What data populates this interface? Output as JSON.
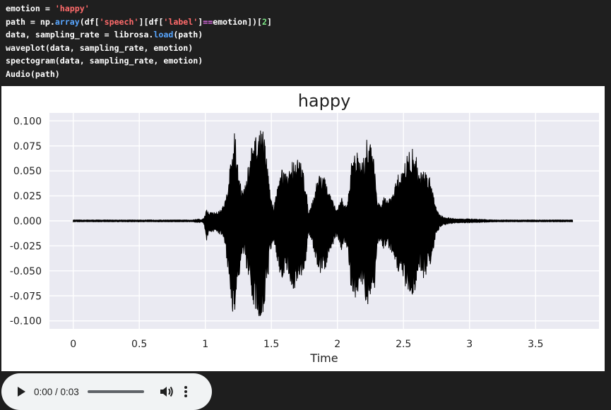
{
  "code": {
    "lines": [
      [
        {
          "t": "emotion = ",
          "c": ""
        },
        {
          "t": "'happy'",
          "c": "str"
        }
      ],
      [
        {
          "t": "path = np.",
          "c": ""
        },
        {
          "t": "array",
          "c": "fn"
        },
        {
          "t": "(df[",
          "c": ""
        },
        {
          "t": "'speech'",
          "c": "str"
        },
        {
          "t": "][df[",
          "c": ""
        },
        {
          "t": "'label'",
          "c": "str"
        },
        {
          "t": "]",
          "c": ""
        },
        {
          "t": "==",
          "c": "op"
        },
        {
          "t": "emotion])[",
          "c": ""
        },
        {
          "t": "2",
          "c": "num"
        },
        {
          "t": "]",
          "c": ""
        }
      ],
      [
        {
          "t": "data, sampling_rate = librosa.",
          "c": ""
        },
        {
          "t": "load",
          "c": "fn"
        },
        {
          "t": "(path)",
          "c": ""
        }
      ],
      [
        {
          "t": "waveplot(data, sampling_rate, emotion)",
          "c": ""
        }
      ],
      [
        {
          "t": "spectogram(data, sampling_rate, emotion)",
          "c": ""
        }
      ],
      [
        {
          "t": "Audio(path)",
          "c": ""
        }
      ]
    ]
  },
  "chart_data": {
    "type": "line",
    "title": "happy",
    "xlabel": "Time",
    "ylabel": "",
    "xlim": [
      -0.18,
      3.98
    ],
    "ylim": [
      -0.108,
      0.108
    ],
    "x_ticks": [
      "0",
      "0.5",
      "1",
      "1.5",
      "2",
      "2.5",
      "3",
      "3.5"
    ],
    "x_tick_values": [
      0,
      0.5,
      1,
      1.5,
      2,
      2.5,
      3,
      3.5
    ],
    "y_ticks": [
      "0.100",
      "0.075",
      "0.050",
      "0.025",
      "0.000",
      "-0.025",
      "-0.050",
      "-0.075",
      "-0.100"
    ],
    "y_tick_values": [
      0.1,
      0.075,
      0.05,
      0.025,
      0,
      -0.025,
      -0.05,
      -0.075,
      -0.1
    ],
    "grid": true,
    "background": "#eaeaf2",
    "line_color": "#000000",
    "signal_duration": 3.78,
    "envelope": {
      "t": [
        0,
        0.9,
        0.95,
        0.97,
        0.99,
        1.01,
        1.03,
        1.05,
        1.08,
        1.12,
        1.15,
        1.18,
        1.2,
        1.22,
        1.25,
        1.28,
        1.3,
        1.33,
        1.35,
        1.37,
        1.4,
        1.43,
        1.46,
        1.48,
        1.5,
        1.52,
        1.55,
        1.58,
        1.62,
        1.65,
        1.68,
        1.72,
        1.75,
        1.78,
        1.8,
        1.82,
        1.85,
        1.87,
        1.9,
        1.92,
        1.95,
        1.98,
        2.0,
        2.03,
        2.05,
        2.08,
        2.1,
        2.13,
        2.15,
        2.18,
        2.2,
        2.23,
        2.25,
        2.28,
        2.3,
        2.33,
        2.35,
        2.38,
        2.4,
        2.43,
        2.45,
        2.48,
        2.5,
        2.52,
        2.55,
        2.58,
        2.6,
        2.62,
        2.65,
        2.68,
        2.7,
        2.72,
        2.75,
        2.78,
        2.8,
        2.85,
        2.9,
        3.0,
        3.2,
        3.5,
        3.78
      ],
      "top": [
        0.001,
        0.001,
        0.002,
        0.001,
        0.003,
        0.012,
        0.008,
        0.01,
        0.008,
        0.012,
        0.02,
        0.05,
        0.07,
        0.093,
        0.055,
        0.03,
        0.035,
        0.06,
        0.075,
        0.08,
        0.09,
        0.098,
        0.07,
        0.045,
        0.02,
        0.015,
        0.04,
        0.055,
        0.045,
        0.06,
        0.065,
        0.06,
        0.05,
        0.01,
        0.015,
        0.025,
        0.045,
        0.05,
        0.045,
        0.035,
        0.025,
        0.015,
        0.012,
        0.025,
        0.015,
        0.02,
        0.055,
        0.075,
        0.07,
        0.055,
        0.065,
        0.09,
        0.078,
        0.07,
        0.02,
        0.015,
        0.025,
        0.02,
        0.025,
        0.03,
        0.045,
        0.05,
        0.055,
        0.065,
        0.072,
        0.073,
        0.065,
        0.045,
        0.055,
        0.05,
        0.045,
        0.035,
        0.012,
        0.006,
        0.004,
        0.003,
        0.002,
        0.002,
        0.001,
        0.001,
        0.001
      ],
      "bottom": [
        -0.001,
        -0.001,
        -0.002,
        -0.001,
        -0.003,
        -0.02,
        -0.01,
        -0.012,
        -0.01,
        -0.015,
        -0.025,
        -0.06,
        -0.09,
        -0.094,
        -0.06,
        -0.035,
        -0.04,
        -0.065,
        -0.078,
        -0.085,
        -0.095,
        -0.098,
        -0.075,
        -0.05,
        -0.025,
        -0.02,
        -0.045,
        -0.06,
        -0.05,
        -0.065,
        -0.07,
        -0.06,
        -0.055,
        -0.012,
        -0.02,
        -0.03,
        -0.05,
        -0.055,
        -0.05,
        -0.045,
        -0.03,
        -0.02,
        -0.015,
        -0.03,
        -0.02,
        -0.03,
        -0.065,
        -0.082,
        -0.08,
        -0.065,
        -0.07,
        -0.09,
        -0.085,
        -0.075,
        -0.025,
        -0.02,
        -0.03,
        -0.025,
        -0.03,
        -0.035,
        -0.05,
        -0.055,
        -0.058,
        -0.07,
        -0.075,
        -0.074,
        -0.068,
        -0.05,
        -0.058,
        -0.052,
        -0.045,
        -0.035,
        -0.012,
        -0.006,
        -0.004,
        -0.003,
        -0.002,
        -0.002,
        -0.001,
        -0.001,
        -0.001
      ]
    }
  },
  "audio": {
    "time": "0:00 / 0:03",
    "progress": 0
  }
}
